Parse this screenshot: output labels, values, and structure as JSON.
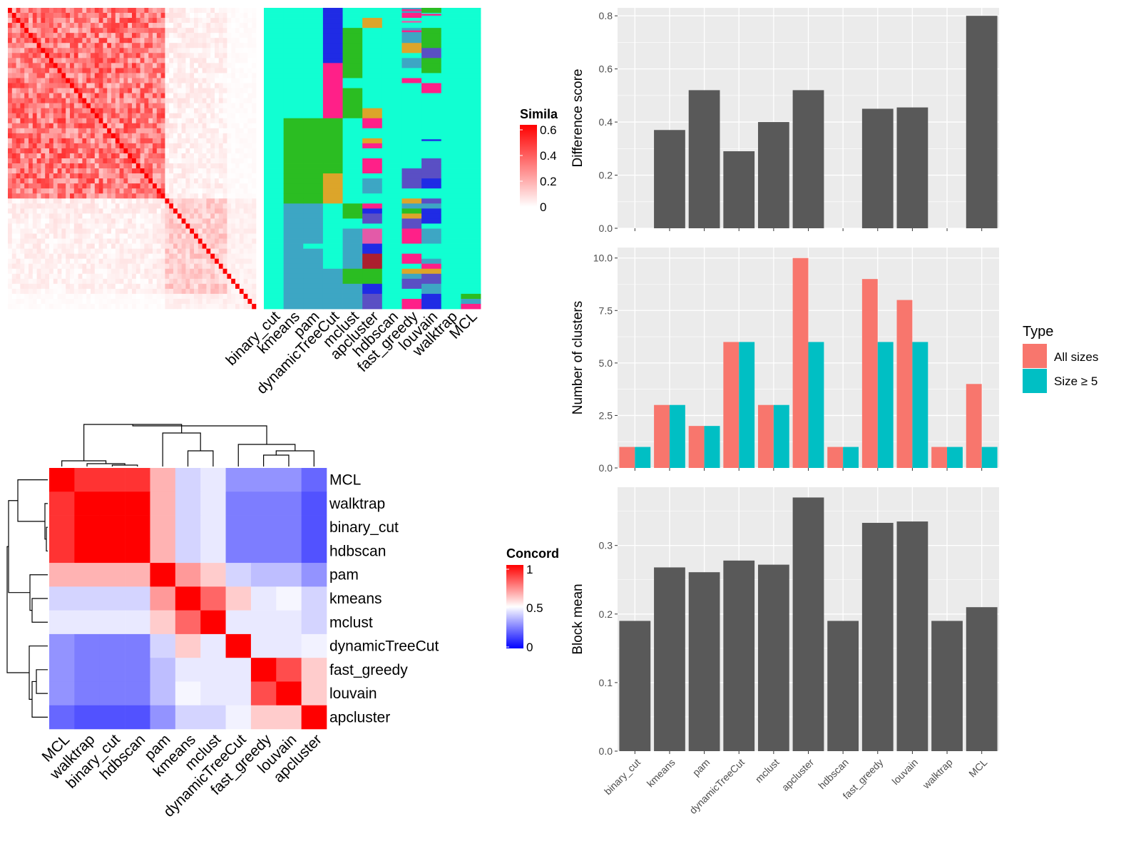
{
  "colors": {
    "panel_bg": "#ebebeb",
    "grid": "#ffffff",
    "bar_dark": "#595959",
    "all_sizes": "#f8766d",
    "size_ge5": "#00bfc4",
    "heat_red": "#ff0000",
    "heat_blue": "#0000ff",
    "assign_palette": [
      "#11ffd2",
      "#2bbd22",
      "#ff2088",
      "#3da6c4",
      "#5a4fc4",
      "#dca52a",
      "#1f2be5",
      "#ac1f2e",
      "#e35aa8"
    ]
  },
  "methods": [
    "binary_cut",
    "kmeans",
    "pam",
    "dynamicTreeCut",
    "mclust",
    "apcluster",
    "hdbscan",
    "fast_greedy",
    "louvain",
    "walktrap",
    "MCL"
  ],
  "similarity_heatmap": {
    "legend_title": "Simila",
    "legend_ticks": [
      "0.6",
      "0.4",
      "0.2",
      "0"
    ],
    "n": 60,
    "blocks": [
      {
        "start": 0,
        "end": 38,
        "level": 0.4
      },
      {
        "start": 38,
        "end": 60,
        "level": 0.15
      }
    ]
  },
  "assignment_heatmap": {
    "rows": 60
  },
  "concordance_heatmap": {
    "legend_title": "Concord",
    "legend_ticks": [
      "1",
      "0.5",
      "0"
    ],
    "order": [
      "MCL",
      "walktrap",
      "binary_cut",
      "hdbscan",
      "pam",
      "kmeans",
      "mclust",
      "dynamicTreeCut",
      "fast_greedy",
      "louvain",
      "apcluster"
    ],
    "matrix": [
      [
        1.0,
        0.9,
        0.9,
        0.9,
        0.65,
        0.4,
        0.45,
        0.25,
        0.25,
        0.25,
        0.15
      ],
      [
        0.9,
        1.0,
        1.0,
        1.0,
        0.65,
        0.4,
        0.45,
        0.2,
        0.2,
        0.2,
        0.1
      ],
      [
        0.9,
        1.0,
        1.0,
        1.0,
        0.65,
        0.4,
        0.45,
        0.2,
        0.2,
        0.2,
        0.1
      ],
      [
        0.9,
        1.0,
        1.0,
        1.0,
        0.65,
        0.4,
        0.45,
        0.2,
        0.2,
        0.2,
        0.1
      ],
      [
        0.65,
        0.65,
        0.65,
        0.65,
        1.0,
        0.7,
        0.6,
        0.4,
        0.35,
        0.35,
        0.25
      ],
      [
        0.4,
        0.4,
        0.4,
        0.4,
        0.7,
        1.0,
        0.8,
        0.6,
        0.45,
        0.48,
        0.4
      ],
      [
        0.45,
        0.45,
        0.45,
        0.45,
        0.6,
        0.8,
        1.0,
        0.45,
        0.45,
        0.45,
        0.4
      ],
      [
        0.25,
        0.2,
        0.2,
        0.2,
        0.4,
        0.6,
        0.45,
        1.0,
        0.45,
        0.45,
        0.47
      ],
      [
        0.25,
        0.2,
        0.2,
        0.2,
        0.35,
        0.45,
        0.45,
        0.45,
        1.0,
        0.85,
        0.6
      ],
      [
        0.25,
        0.2,
        0.2,
        0.2,
        0.35,
        0.48,
        0.45,
        0.45,
        0.85,
        1.0,
        0.6
      ],
      [
        0.15,
        0.1,
        0.1,
        0.1,
        0.25,
        0.4,
        0.4,
        0.47,
        0.6,
        0.6,
        1.0
      ]
    ]
  },
  "chart_data": [
    {
      "type": "bar",
      "ylabel": "Difference score",
      "categories": [
        "binary_cut",
        "kmeans",
        "pam",
        "dynamicTreeCut",
        "mclust",
        "apcluster",
        "hdbscan",
        "fast_greedy",
        "louvain",
        "walktrap",
        "MCL"
      ],
      "values": [
        0,
        0.37,
        0.52,
        0.29,
        0.4,
        0.52,
        0,
        0.45,
        0.455,
        0,
        0.8
      ],
      "ylim": [
        0,
        0.83
      ],
      "yticks": [
        0.0,
        0.2,
        0.4,
        0.6,
        0.8
      ],
      "ytick_labels": [
        "0.0",
        "0.2",
        "0.4",
        "0.6",
        "0.8"
      ]
    },
    {
      "type": "bar",
      "ylabel": "Number of clusters",
      "categories": [
        "binary_cut",
        "kmeans",
        "pam",
        "dynamicTreeCut",
        "mclust",
        "apcluster",
        "hdbscan",
        "fast_greedy",
        "louvain",
        "walktrap",
        "MCL"
      ],
      "series": [
        {
          "name": "All sizes",
          "values": [
            1,
            3,
            2,
            6,
            3,
            10,
            1,
            9,
            8,
            1,
            4
          ]
        },
        {
          "name": "Size ≥ 5",
          "values": [
            1,
            3,
            2,
            6,
            3,
            6,
            1,
            6,
            6,
            1,
            1
          ]
        }
      ],
      "ylim": [
        0,
        10.5
      ],
      "yticks": [
        0,
        2.5,
        5,
        7.5,
        10
      ],
      "ytick_labels": [
        "0.0",
        "2.5",
        "5.0",
        "7.5",
        "10.0"
      ],
      "legend": {
        "title": "Type",
        "position": "right"
      }
    },
    {
      "type": "bar",
      "ylabel": "Block mean",
      "categories": [
        "binary_cut",
        "kmeans",
        "pam",
        "dynamicTreeCut",
        "mclust",
        "apcluster",
        "hdbscan",
        "fast_greedy",
        "louvain",
        "walktrap",
        "MCL"
      ],
      "values": [
        0.19,
        0.268,
        0.261,
        0.278,
        0.272,
        0.37,
        0.19,
        0.333,
        0.335,
        0.19,
        0.21
      ],
      "ylim": [
        0,
        0.385
      ],
      "yticks": [
        0.0,
        0.1,
        0.2,
        0.3
      ],
      "ytick_labels": [
        "0.0",
        "0.1",
        "0.2",
        "0.3"
      ]
    }
  ]
}
